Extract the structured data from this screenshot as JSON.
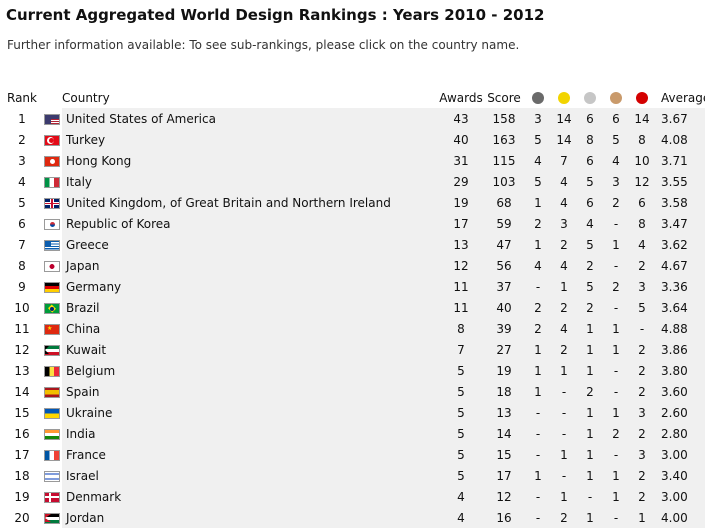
{
  "page": {
    "title": "Current Aggregated World Design Rankings : Years 2010 - 2012",
    "subtitle": "Further information available: To see sub-rankings, please click on the country name."
  },
  "table": {
    "headers": {
      "rank": "Rank",
      "country": "Country",
      "awards": "Awards",
      "score": "Score",
      "average": "Average"
    },
    "medal_colors": [
      "#6a6a6a",
      "#f2d400",
      "#c6c6c6",
      "#c99a6b",
      "#d40000"
    ],
    "rows": [
      {
        "rank": "1",
        "country": "United States of America",
        "flag": "flag-usa",
        "awards": "43",
        "score": "158",
        "m": [
          "3",
          "14",
          "6",
          "6",
          "14"
        ],
        "average": "3.67"
      },
      {
        "rank": "2",
        "country": "Turkey",
        "flag": "flag-turkey",
        "awards": "40",
        "score": "163",
        "m": [
          "5",
          "14",
          "8",
          "5",
          "8"
        ],
        "average": "4.08"
      },
      {
        "rank": "3",
        "country": "Hong Kong",
        "flag": "flag-hong-kong",
        "awards": "31",
        "score": "115",
        "m": [
          "4",
          "7",
          "6",
          "4",
          "10"
        ],
        "average": "3.71"
      },
      {
        "rank": "4",
        "country": "Italy",
        "flag": "flag-italy",
        "awards": "29",
        "score": "103",
        "m": [
          "5",
          "4",
          "5",
          "3",
          "12"
        ],
        "average": "3.55"
      },
      {
        "rank": "5",
        "country": "United Kingdom, of Great Britain and Northern Ireland",
        "flag": "flag-uk",
        "awards": "19",
        "score": "68",
        "m": [
          "1",
          "4",
          "6",
          "2",
          "6"
        ],
        "average": "3.58"
      },
      {
        "rank": "6",
        "country": "Republic of Korea",
        "flag": "flag-korea",
        "awards": "17",
        "score": "59",
        "m": [
          "2",
          "3",
          "4",
          "-",
          "8"
        ],
        "average": "3.47"
      },
      {
        "rank": "7",
        "country": "Greece",
        "flag": "flag-greece",
        "awards": "13",
        "score": "47",
        "m": [
          "1",
          "2",
          "5",
          "1",
          "4"
        ],
        "average": "3.62"
      },
      {
        "rank": "8",
        "country": "Japan",
        "flag": "flag-japan",
        "awards": "12",
        "score": "56",
        "m": [
          "4",
          "4",
          "2",
          "-",
          "2"
        ],
        "average": "4.67"
      },
      {
        "rank": "9",
        "country": "Germany",
        "flag": "flag-germany",
        "awards": "11",
        "score": "37",
        "m": [
          "-",
          "1",
          "5",
          "2",
          "3"
        ],
        "average": "3.36"
      },
      {
        "rank": "10",
        "country": "Brazil",
        "flag": "flag-brazil",
        "awards": "11",
        "score": "40",
        "m": [
          "2",
          "2",
          "2",
          "-",
          "5"
        ],
        "average": "3.64"
      },
      {
        "rank": "11",
        "country": "China",
        "flag": "flag-china",
        "awards": "8",
        "score": "39",
        "m": [
          "2",
          "4",
          "1",
          "1",
          "-"
        ],
        "average": "4.88"
      },
      {
        "rank": "12",
        "country": "Kuwait",
        "flag": "flag-kuwait",
        "awards": "7",
        "score": "27",
        "m": [
          "1",
          "2",
          "1",
          "1",
          "2"
        ],
        "average": "3.86"
      },
      {
        "rank": "13",
        "country": "Belgium",
        "flag": "flag-belgium",
        "awards": "5",
        "score": "19",
        "m": [
          "1",
          "1",
          "1",
          "-",
          "2"
        ],
        "average": "3.80"
      },
      {
        "rank": "14",
        "country": "Spain",
        "flag": "flag-spain",
        "awards": "5",
        "score": "18",
        "m": [
          "1",
          "-",
          "2",
          "-",
          "2"
        ],
        "average": "3.60"
      },
      {
        "rank": "15",
        "country": "Ukraine",
        "flag": "flag-ukraine",
        "awards": "5",
        "score": "13",
        "m": [
          "-",
          "-",
          "1",
          "1",
          "3"
        ],
        "average": "2.60"
      },
      {
        "rank": "16",
        "country": "India",
        "flag": "flag-india",
        "awards": "5",
        "score": "14",
        "m": [
          "-",
          "-",
          "1",
          "2",
          "2"
        ],
        "average": "2.80"
      },
      {
        "rank": "17",
        "country": "France",
        "flag": "flag-france",
        "awards": "5",
        "score": "15",
        "m": [
          "-",
          "1",
          "1",
          "-",
          "3"
        ],
        "average": "3.00"
      },
      {
        "rank": "18",
        "country": "Israel",
        "flag": "flag-israel",
        "awards": "5",
        "score": "17",
        "m": [
          "1",
          "-",
          "1",
          "1",
          "2"
        ],
        "average": "3.40"
      },
      {
        "rank": "19",
        "country": "Denmark",
        "flag": "flag-denmark",
        "awards": "4",
        "score": "12",
        "m": [
          "-",
          "1",
          "-",
          "1",
          "2"
        ],
        "average": "3.00"
      },
      {
        "rank": "20",
        "country": "Jordan",
        "flag": "flag-jordan",
        "awards": "4",
        "score": "16",
        "m": [
          "-",
          "2",
          "1",
          "-",
          "1"
        ],
        "average": "4.00"
      }
    ]
  }
}
